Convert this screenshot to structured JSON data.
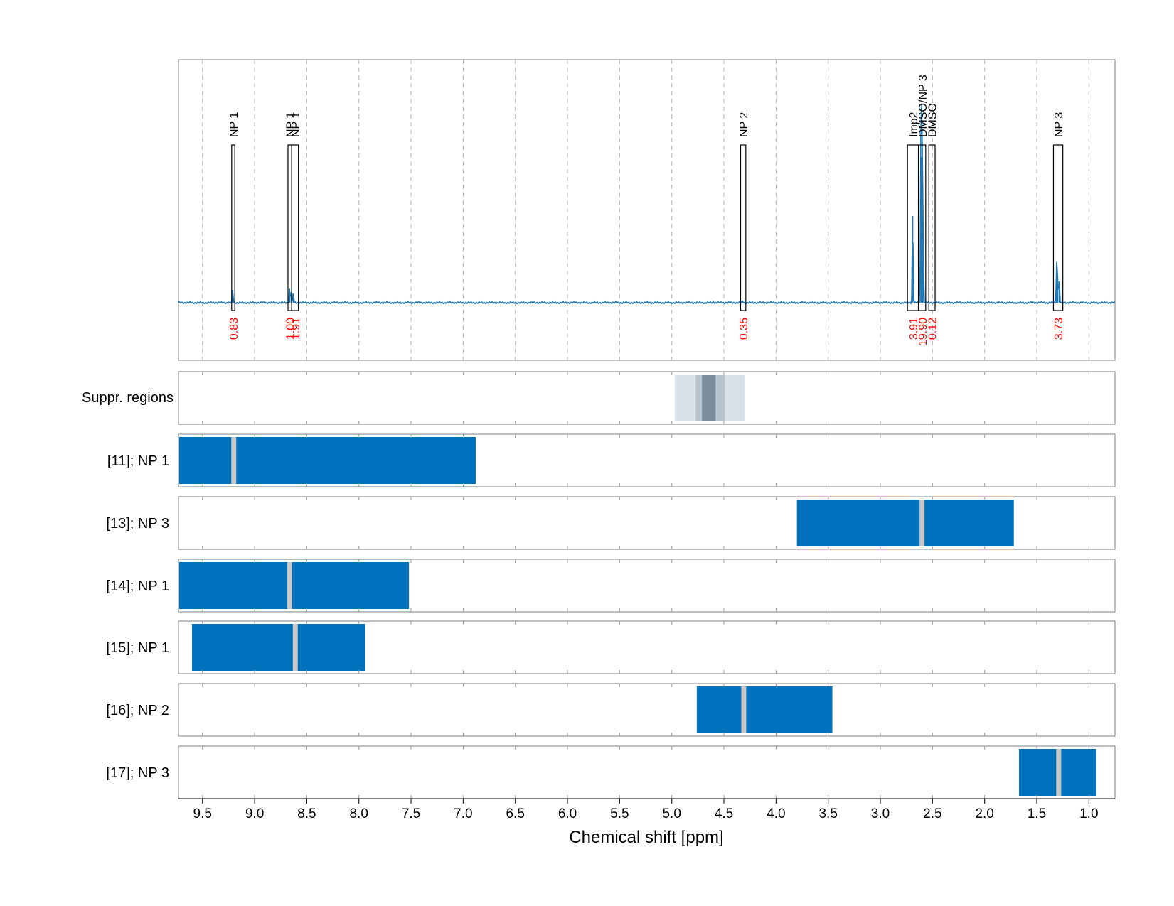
{
  "chart_data": {
    "type": "line",
    "xlabel": "Chemical shift [ppm]",
    "xlim": [
      9.73,
      0.75
    ],
    "x_ticks": [
      9.5,
      9.0,
      8.5,
      8.0,
      7.5,
      7.0,
      6.5,
      6.0,
      5.5,
      5.0,
      4.5,
      4.0,
      3.5,
      3.0,
      2.5,
      2.0,
      1.5,
      1.0
    ],
    "x_tick_labels": [
      "9.5",
      "9.0",
      "8.5",
      "8.0",
      "7.5",
      "7.0",
      "6.5",
      "6.0",
      "5.5",
      "5.0",
      "4.5",
      "4.0",
      "3.5",
      "3.0",
      "2.5",
      "2.0",
      "1.5",
      "1.0"
    ],
    "grid": true,
    "colors": {
      "spectrum": "#1f77b4",
      "bar": "#0072bd",
      "marker": "#c8c8c8",
      "integral": "#ff0000",
      "suppr_light": "#d9e1e8",
      "suppr_mid": "#b7c4ce",
      "suppr_dark": "#7b8d9a"
    },
    "spectrum_peaks": [
      {
        "x": 9.21,
        "height": 0.055
      },
      {
        "x": 8.665,
        "height": 0.06
      },
      {
        "x": 8.65,
        "height": 0.045
      },
      {
        "x": 8.63,
        "height": 0.04
      },
      {
        "x": 4.32,
        "height": 0.008
      },
      {
        "x": 4.6,
        "height": 0.005
      },
      {
        "x": 2.69,
        "height": 0.37
      },
      {
        "x": 2.612,
        "height": 0.55
      },
      {
        "x": 2.605,
        "height": 0.62
      },
      {
        "x": 2.598,
        "height": 0.5
      },
      {
        "x": 2.59,
        "height": 0.3
      },
      {
        "x": 1.31,
        "height": 0.17
      },
      {
        "x": 1.3,
        "height": 0.12
      },
      {
        "x": 1.285,
        "height": 0.09
      }
    ],
    "regions": [
      {
        "label": "NP 1",
        "x_from": 9.22,
        "x_to": 9.19,
        "integral": "0.83"
      },
      {
        "label": "NP 1",
        "x_from": 8.68,
        "x_to": 8.645,
        "integral": "1.00"
      },
      {
        "label": "NP 1",
        "x_from": 8.645,
        "x_to": 8.58,
        "integral": "1.91"
      },
      {
        "label": "NP 2",
        "x_from": 4.34,
        "x_to": 4.29,
        "integral": "0.35"
      },
      {
        "label": "Imp2",
        "x_from": 2.74,
        "x_to": 2.635,
        "integral": "3.91"
      },
      {
        "label": "DMSO/NP 3",
        "x_from": 2.63,
        "x_to": 2.565,
        "integral": "19.90"
      },
      {
        "label": "DMSO",
        "x_from": 2.535,
        "x_to": 2.475,
        "integral": "0.12"
      },
      {
        "label": "NP 3",
        "x_from": 1.34,
        "x_to": 1.25,
        "integral": "3.73"
      }
    ],
    "suppression": {
      "label": "Suppr. regions",
      "bands": [
        {
          "x_from": 4.97,
          "x_to": 4.3,
          "level": "light"
        },
        {
          "x_from": 4.77,
          "x_to": 4.49,
          "level": "mid"
        },
        {
          "x_from": 4.71,
          "x_to": 4.58,
          "level": "dark"
        }
      ]
    },
    "tracks": [
      {
        "label": "[11]; NP 1",
        "x_from": 9.73,
        "x_to": 6.88,
        "marker": 9.2
      },
      {
        "label": "[13]; NP 3",
        "x_from": 3.8,
        "x_to": 1.72,
        "marker": 2.6
      },
      {
        "label": "[14]; NP 1",
        "x_from": 9.73,
        "x_to": 7.52,
        "marker": 8.665
      },
      {
        "label": "[15]; NP 1",
        "x_from": 9.6,
        "x_to": 7.94,
        "marker": 8.61
      },
      {
        "label": "[16]; NP 2",
        "x_from": 4.76,
        "x_to": 3.46,
        "marker": 4.31
      },
      {
        "label": "[17]; NP 3",
        "x_from": 1.67,
        "x_to": 0.93,
        "marker": 1.29
      }
    ]
  }
}
